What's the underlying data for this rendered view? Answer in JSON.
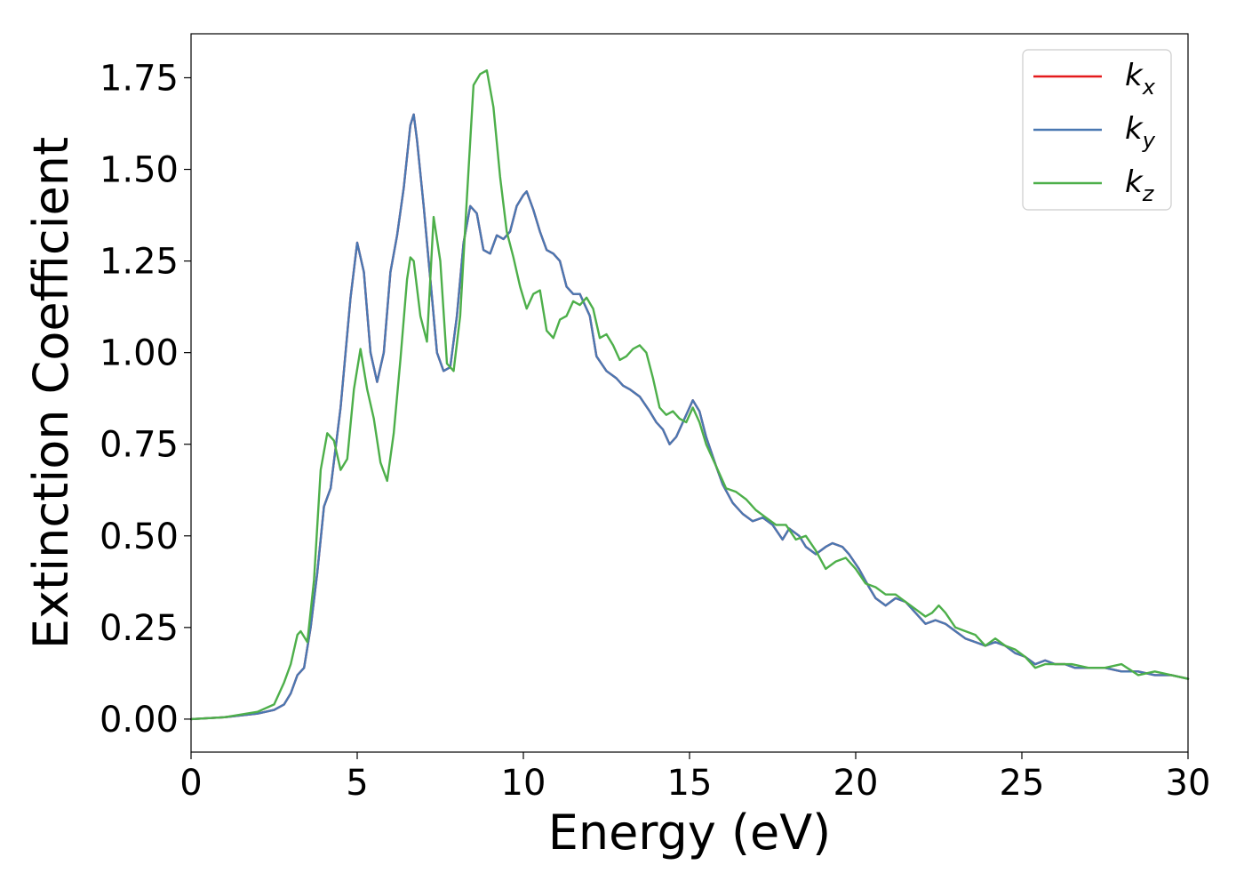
{
  "chart_data": {
    "type": "line",
    "xlabel": "Energy (eV)",
    "ylabel": "Extinction Coefficient",
    "xlim": [
      0,
      30
    ],
    "ylim": [
      -0.09,
      1.87
    ],
    "xticks": [
      0,
      5,
      10,
      15,
      20,
      25,
      30
    ],
    "yticks": [
      0.0,
      0.25,
      0.5,
      0.75,
      1.0,
      1.25,
      1.5,
      1.75
    ],
    "xtick_labels": [
      "0",
      "5",
      "10",
      "15",
      "20",
      "25",
      "30"
    ],
    "ytick_labels": [
      "0.00",
      "0.25",
      "0.50",
      "0.75",
      "1.00",
      "1.25",
      "1.50",
      "1.75"
    ],
    "grid": false,
    "legend_position": "top-right",
    "series": [
      {
        "name": "k",
        "subscript": "x",
        "color": "#e41a1c",
        "x": [
          0,
          1,
          2,
          2.5,
          2.8,
          3.0,
          3.2,
          3.4,
          3.6,
          3.8,
          4.0,
          4.2,
          4.5,
          4.8,
          5.0,
          5.2,
          5.4,
          5.6,
          5.8,
          6.0,
          6.2,
          6.4,
          6.6,
          6.7,
          6.8,
          7.0,
          7.2,
          7.4,
          7.6,
          7.8,
          8.0,
          8.2,
          8.4,
          8.6,
          8.8,
          9.0,
          9.2,
          9.4,
          9.6,
          9.8,
          10.0,
          10.1,
          10.3,
          10.5,
          10.7,
          10.9,
          11.1,
          11.3,
          11.5,
          11.7,
          12.0,
          12.2,
          12.5,
          12.8,
          13.0,
          13.2,
          13.5,
          13.8,
          14.0,
          14.2,
          14.4,
          14.6,
          14.8,
          15.0,
          15.1,
          15.3,
          15.5,
          15.8,
          16.0,
          16.3,
          16.6,
          16.9,
          17.2,
          17.5,
          17.8,
          18.0,
          18.3,
          18.5,
          18.8,
          19.1,
          19.3,
          19.6,
          19.8,
          20.1,
          20.4,
          20.6,
          20.9,
          21.2,
          21.5,
          21.8,
          22.1,
          22.4,
          22.7,
          23.0,
          23.3,
          23.6,
          23.9,
          24.2,
          24.5,
          24.8,
          25.1,
          25.4,
          25.7,
          26.0,
          26.3,
          26.6,
          27.0,
          27.5,
          28.0,
          28.5,
          29.0,
          29.5,
          30.0
        ],
        "values": [
          0.0,
          0.005,
          0.015,
          0.025,
          0.04,
          0.07,
          0.12,
          0.14,
          0.25,
          0.4,
          0.58,
          0.63,
          0.85,
          1.15,
          1.3,
          1.22,
          1.0,
          0.92,
          1.0,
          1.22,
          1.32,
          1.45,
          1.62,
          1.65,
          1.58,
          1.4,
          1.2,
          1.0,
          0.95,
          0.96,
          1.1,
          1.3,
          1.4,
          1.38,
          1.28,
          1.27,
          1.32,
          1.31,
          1.33,
          1.4,
          1.43,
          1.44,
          1.39,
          1.33,
          1.28,
          1.27,
          1.25,
          1.18,
          1.16,
          1.16,
          1.1,
          0.99,
          0.95,
          0.93,
          0.91,
          0.9,
          0.88,
          0.84,
          0.81,
          0.79,
          0.75,
          0.77,
          0.81,
          0.85,
          0.87,
          0.84,
          0.77,
          0.69,
          0.64,
          0.59,
          0.56,
          0.54,
          0.55,
          0.53,
          0.49,
          0.52,
          0.5,
          0.47,
          0.45,
          0.47,
          0.48,
          0.47,
          0.45,
          0.41,
          0.36,
          0.33,
          0.31,
          0.33,
          0.32,
          0.29,
          0.26,
          0.27,
          0.26,
          0.24,
          0.22,
          0.21,
          0.2,
          0.21,
          0.2,
          0.18,
          0.17,
          0.15,
          0.16,
          0.15,
          0.15,
          0.14,
          0.14,
          0.14,
          0.13,
          0.13,
          0.12,
          0.12,
          0.11
        ]
      },
      {
        "name": "k",
        "subscript": "y",
        "color": "#4a78b2",
        "x": [
          0,
          1,
          2,
          2.5,
          2.8,
          3.0,
          3.2,
          3.4,
          3.6,
          3.8,
          4.0,
          4.2,
          4.5,
          4.8,
          5.0,
          5.2,
          5.4,
          5.6,
          5.8,
          6.0,
          6.2,
          6.4,
          6.6,
          6.7,
          6.8,
          7.0,
          7.2,
          7.4,
          7.6,
          7.8,
          8.0,
          8.2,
          8.4,
          8.6,
          8.8,
          9.0,
          9.2,
          9.4,
          9.6,
          9.8,
          10.0,
          10.1,
          10.3,
          10.5,
          10.7,
          10.9,
          11.1,
          11.3,
          11.5,
          11.7,
          12.0,
          12.2,
          12.5,
          12.8,
          13.0,
          13.2,
          13.5,
          13.8,
          14.0,
          14.2,
          14.4,
          14.6,
          14.8,
          15.0,
          15.1,
          15.3,
          15.5,
          15.8,
          16.0,
          16.3,
          16.6,
          16.9,
          17.2,
          17.5,
          17.8,
          18.0,
          18.3,
          18.5,
          18.8,
          19.1,
          19.3,
          19.6,
          19.8,
          20.1,
          20.4,
          20.6,
          20.9,
          21.2,
          21.5,
          21.8,
          22.1,
          22.4,
          22.7,
          23.0,
          23.3,
          23.6,
          23.9,
          24.2,
          24.5,
          24.8,
          25.1,
          25.4,
          25.7,
          26.0,
          26.3,
          26.6,
          27.0,
          27.5,
          28.0,
          28.5,
          29.0,
          29.5,
          30.0
        ],
        "values": [
          0.0,
          0.005,
          0.015,
          0.025,
          0.04,
          0.07,
          0.12,
          0.14,
          0.25,
          0.4,
          0.58,
          0.63,
          0.85,
          1.15,
          1.3,
          1.22,
          1.0,
          0.92,
          1.0,
          1.22,
          1.32,
          1.45,
          1.62,
          1.65,
          1.58,
          1.4,
          1.2,
          1.0,
          0.95,
          0.96,
          1.1,
          1.3,
          1.4,
          1.38,
          1.28,
          1.27,
          1.32,
          1.31,
          1.33,
          1.4,
          1.43,
          1.44,
          1.39,
          1.33,
          1.28,
          1.27,
          1.25,
          1.18,
          1.16,
          1.16,
          1.1,
          0.99,
          0.95,
          0.93,
          0.91,
          0.9,
          0.88,
          0.84,
          0.81,
          0.79,
          0.75,
          0.77,
          0.81,
          0.85,
          0.87,
          0.84,
          0.77,
          0.69,
          0.64,
          0.59,
          0.56,
          0.54,
          0.55,
          0.53,
          0.49,
          0.52,
          0.5,
          0.47,
          0.45,
          0.47,
          0.48,
          0.47,
          0.45,
          0.41,
          0.36,
          0.33,
          0.31,
          0.33,
          0.32,
          0.29,
          0.26,
          0.27,
          0.26,
          0.24,
          0.22,
          0.21,
          0.2,
          0.21,
          0.2,
          0.18,
          0.17,
          0.15,
          0.16,
          0.15,
          0.15,
          0.14,
          0.14,
          0.14,
          0.13,
          0.13,
          0.12,
          0.12,
          0.11
        ]
      },
      {
        "name": "k",
        "subscript": "z",
        "color": "#4daf4a",
        "x": [
          0,
          1,
          2,
          2.5,
          2.8,
          3.0,
          3.2,
          3.3,
          3.5,
          3.7,
          3.9,
          4.1,
          4.3,
          4.5,
          4.7,
          4.9,
          5.1,
          5.3,
          5.5,
          5.7,
          5.9,
          6.1,
          6.3,
          6.5,
          6.6,
          6.7,
          6.9,
          7.1,
          7.3,
          7.5,
          7.7,
          7.9,
          8.1,
          8.3,
          8.5,
          8.7,
          8.9,
          9.1,
          9.3,
          9.5,
          9.7,
          9.9,
          10.1,
          10.3,
          10.5,
          10.7,
          10.9,
          11.1,
          11.3,
          11.5,
          11.7,
          11.9,
          12.1,
          12.3,
          12.5,
          12.7,
          12.9,
          13.1,
          13.3,
          13.5,
          13.7,
          13.9,
          14.1,
          14.3,
          14.5,
          14.7,
          14.9,
          15.1,
          15.3,
          15.5,
          15.8,
          16.1,
          16.4,
          16.7,
          17.0,
          17.3,
          17.6,
          17.9,
          18.2,
          18.5,
          18.8,
          19.1,
          19.4,
          19.7,
          20.0,
          20.3,
          20.6,
          20.9,
          21.2,
          21.5,
          21.8,
          22.1,
          22.3,
          22.5,
          22.7,
          23.0,
          23.3,
          23.6,
          23.9,
          24.2,
          24.5,
          24.8,
          25.1,
          25.4,
          25.7,
          26.0,
          26.5,
          27.0,
          27.5,
          28.0,
          28.5,
          29.0,
          29.5,
          30.0
        ],
        "values": [
          0.0,
          0.005,
          0.02,
          0.04,
          0.1,
          0.15,
          0.23,
          0.24,
          0.21,
          0.38,
          0.68,
          0.78,
          0.76,
          0.68,
          0.71,
          0.9,
          1.01,
          0.9,
          0.82,
          0.7,
          0.65,
          0.78,
          0.98,
          1.2,
          1.26,
          1.25,
          1.1,
          1.03,
          1.37,
          1.25,
          0.97,
          0.95,
          1.1,
          1.42,
          1.73,
          1.76,
          1.77,
          1.67,
          1.48,
          1.33,
          1.26,
          1.18,
          1.12,
          1.16,
          1.17,
          1.06,
          1.04,
          1.09,
          1.1,
          1.14,
          1.13,
          1.15,
          1.12,
          1.04,
          1.05,
          1.02,
          0.98,
          0.99,
          1.01,
          1.02,
          1.0,
          0.93,
          0.85,
          0.83,
          0.84,
          0.82,
          0.81,
          0.85,
          0.81,
          0.75,
          0.69,
          0.63,
          0.62,
          0.6,
          0.57,
          0.55,
          0.53,
          0.53,
          0.49,
          0.5,
          0.46,
          0.41,
          0.43,
          0.44,
          0.41,
          0.37,
          0.36,
          0.34,
          0.34,
          0.32,
          0.3,
          0.28,
          0.29,
          0.31,
          0.29,
          0.25,
          0.24,
          0.23,
          0.2,
          0.22,
          0.2,
          0.19,
          0.17,
          0.14,
          0.15,
          0.15,
          0.15,
          0.14,
          0.14,
          0.15,
          0.12,
          0.13,
          0.12,
          0.11
        ]
      }
    ]
  }
}
